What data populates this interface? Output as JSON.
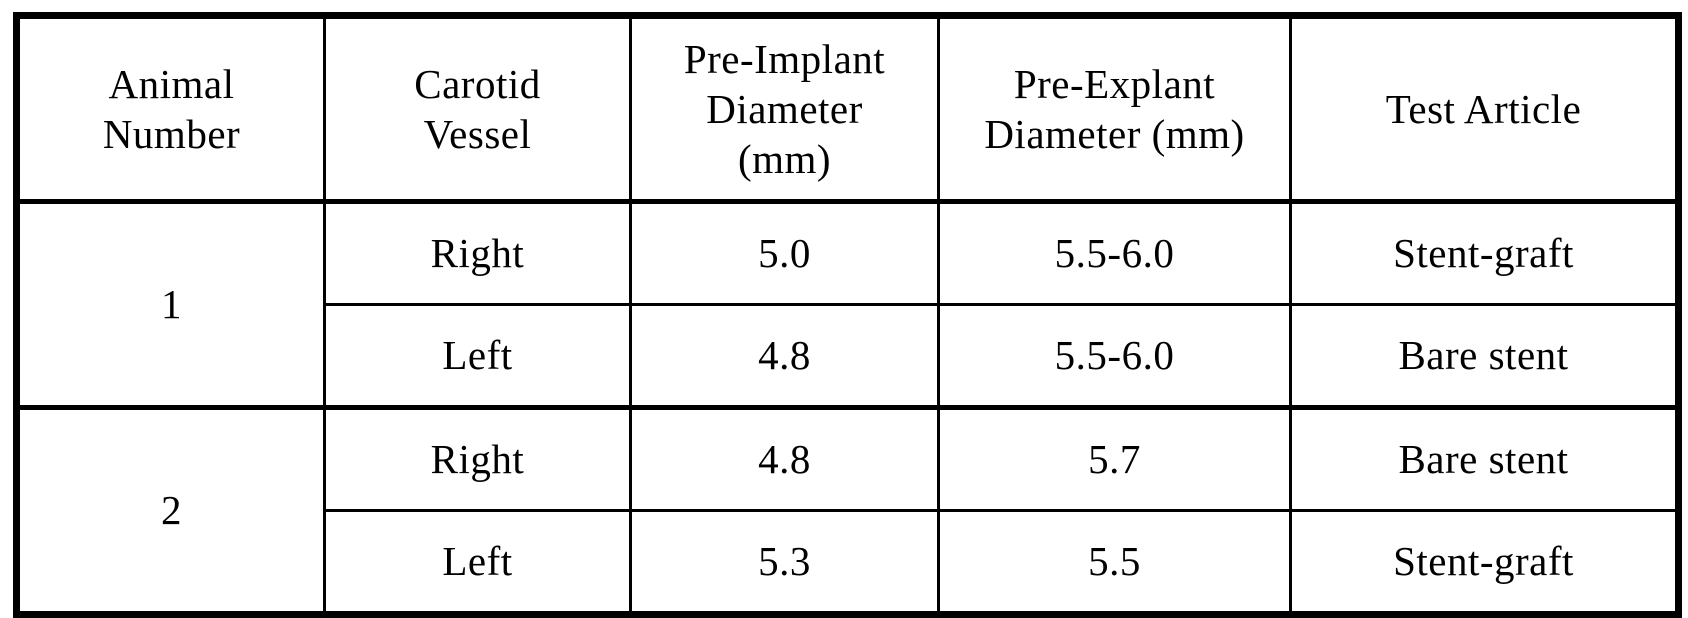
{
  "document": {
    "kind": "scanned-table",
    "colors": {
      "background": "#ffffff",
      "border": "#000000",
      "text": "#000000"
    }
  },
  "table": {
    "headers": [
      {
        "name": "animal-number",
        "lines": [
          "Animal",
          "Number"
        ]
      },
      {
        "name": "carotid-vessel",
        "lines": [
          "Carotid",
          "Vessel"
        ]
      },
      {
        "name": "pre-implant-diameter",
        "lines": [
          "Pre-Implant",
          "Diameter",
          "(mm)"
        ]
      },
      {
        "name": "pre-explant-diameter",
        "lines": [
          "Pre-Explant",
          "Diameter (mm)"
        ]
      },
      {
        "name": "test-article",
        "lines": [
          "Test Article"
        ]
      }
    ],
    "groups": [
      {
        "animal_number": "1",
        "rows": [
          {
            "vessel": "Right",
            "pre_implant": "5.0",
            "pre_explant": "5.5-6.0",
            "test_article": "Stent-graft"
          },
          {
            "vessel": "Left",
            "pre_implant": "4.8",
            "pre_explant": "5.5-6.0",
            "test_article": "Bare stent"
          }
        ]
      },
      {
        "animal_number": "2",
        "rows": [
          {
            "vessel": "Right",
            "pre_implant": "4.8",
            "pre_explant": "5.7",
            "test_article": "Bare stent"
          },
          {
            "vessel": "Left",
            "pre_implant": "5.3",
            "pre_explant": "5.5",
            "test_article": "Stent-graft"
          }
        ]
      }
    ]
  }
}
